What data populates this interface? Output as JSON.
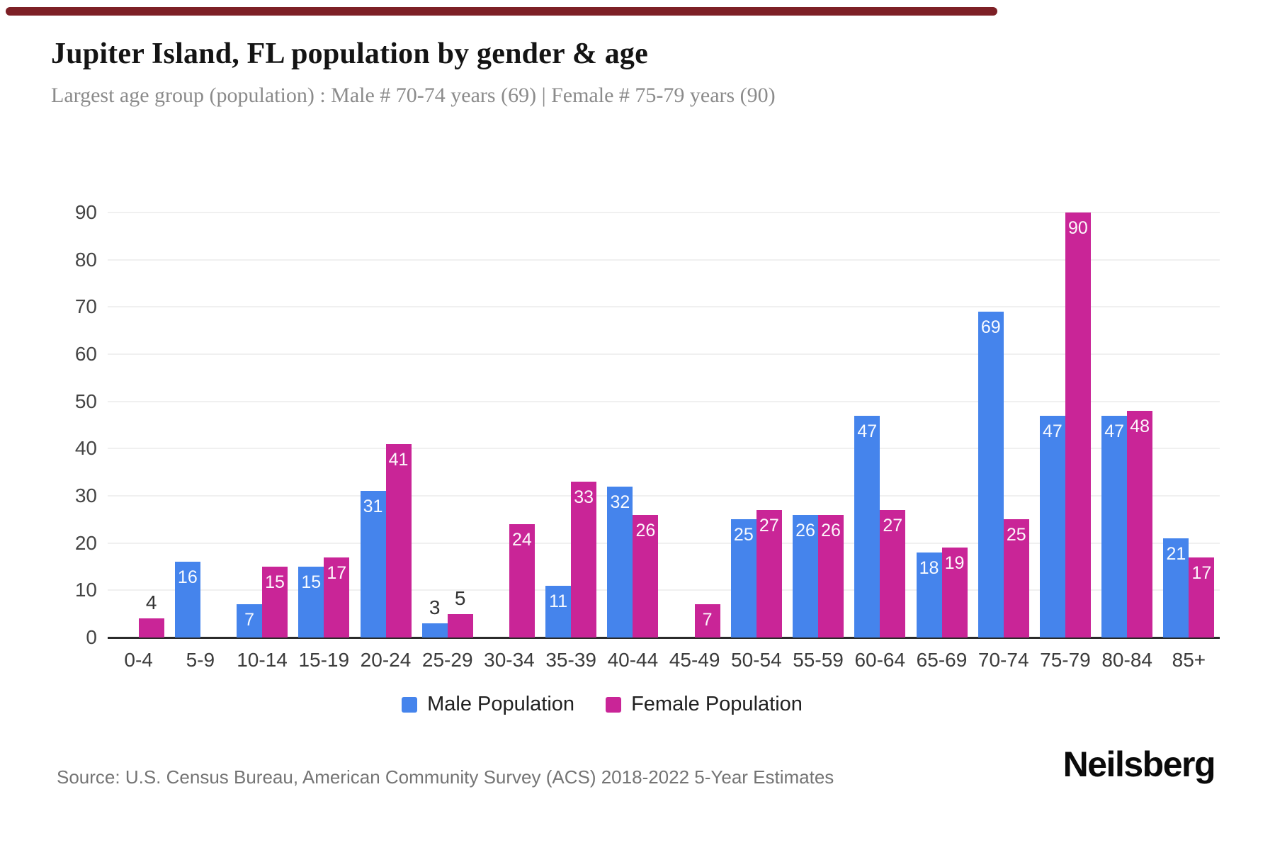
{
  "page": {
    "title": "Jupiter Island, FL population by gender & age",
    "subtitle": "Largest age group (population) : Male # 70-74 years (69) | Female # 75-79 years (90)",
    "source": "Source: U.S. Census Bureau, American Community Survey (ACS) 2018-2022 5-Year Estimates",
    "brand": "Neilsberg"
  },
  "colors": {
    "male": "#4584ec",
    "female": "#c92597",
    "grid": "#f0f0f0",
    "axis": "#2b2b2b",
    "progress_strip": "#7d2026"
  },
  "legend": {
    "items": [
      {
        "label": "Male Population",
        "color": "#4584ec"
      },
      {
        "label": "Female Population",
        "color": "#c92597"
      }
    ],
    "position": "bottom"
  },
  "chart_data": {
    "type": "bar",
    "title": "Jupiter Island, FL population by gender & age",
    "xlabel": "",
    "ylabel": "",
    "categories": [
      "0-4",
      "5-9",
      "10-14",
      "15-19",
      "20-24",
      "25-29",
      "30-34",
      "35-39",
      "40-44",
      "45-49",
      "50-54",
      "55-59",
      "60-64",
      "65-69",
      "70-74",
      "75-79",
      "80-84",
      "85+"
    ],
    "series": [
      {
        "name": "Male Population",
        "color": "#4584ec",
        "values": [
          0,
          16,
          7,
          15,
          31,
          3,
          0,
          11,
          32,
          0,
          25,
          26,
          47,
          18,
          69,
          47,
          47,
          21
        ]
      },
      {
        "name": "Female Population",
        "color": "#c92597",
        "values": [
          4,
          0,
          15,
          17,
          41,
          5,
          24,
          33,
          26,
          7,
          27,
          26,
          27,
          19,
          25,
          90,
          48,
          17
        ]
      }
    ],
    "ylim": [
      0,
      90
    ],
    "yticks": [
      0,
      10,
      20,
      30,
      40,
      50,
      60,
      70,
      80,
      90
    ],
    "grid": true,
    "legend_position": "bottom",
    "bar_value_labels": true
  }
}
